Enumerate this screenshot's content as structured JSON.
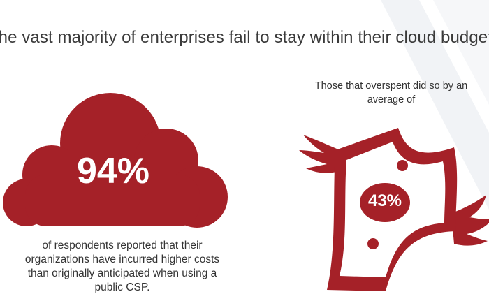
{
  "headline": "The vast majority of enterprises fail to stay within their cloud budgets",
  "left_stat": {
    "value": "94%",
    "caption": "of respondents reported that their organizations have incurred higher costs than originally anticipated when using a public CSP."
  },
  "right_stat": {
    "intro": "Those that overspent did so by an average of",
    "value": "43%"
  },
  "colors": {
    "accent_red": "#a52128",
    "text_dark": "#333333",
    "stripe_light": "#eef0f4"
  },
  "icons": [
    "cloud-icon",
    "flying-money-icon"
  ]
}
